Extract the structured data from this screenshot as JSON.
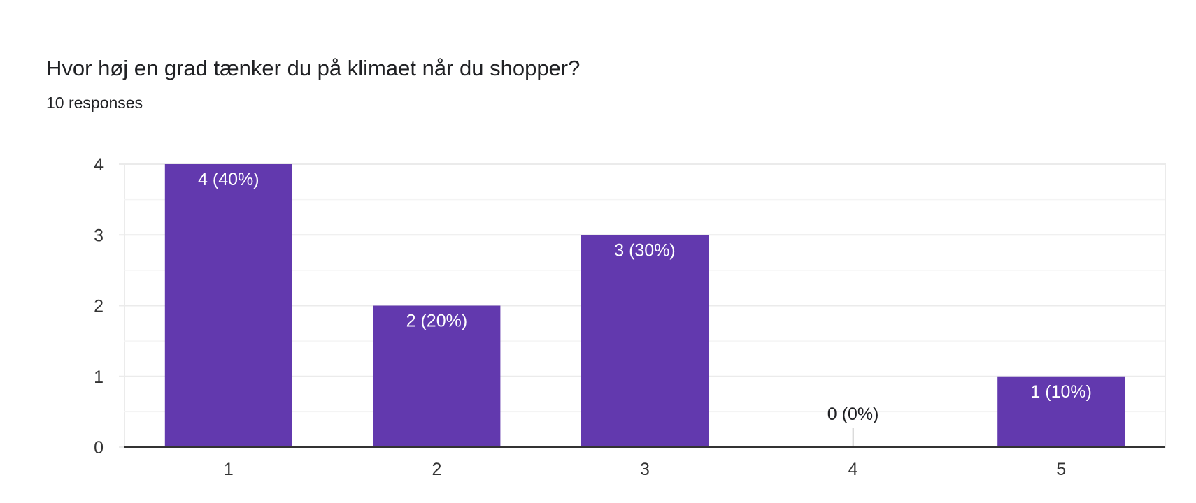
{
  "question": {
    "title": "Hvor høj en grad tænker du på klimaet når du shopper?",
    "responses": "10 responses"
  },
  "colors": {
    "bar": "#6239ae",
    "grid": "#ebebeb",
    "minor_grid": "#f4f4f4",
    "axis": "#333333",
    "label_inside": "#ffffff",
    "label_outside": "#202124",
    "tick_text": "#333333"
  },
  "chart_data": {
    "type": "bar",
    "categories": [
      "1",
      "2",
      "3",
      "4",
      "5"
    ],
    "values": [
      4,
      2,
      3,
      0,
      1
    ],
    "data_labels": [
      "4 (40%)",
      "2 (20%)",
      "3 (30%)",
      "0 (0%)",
      "1 (10%)"
    ],
    "y_ticks": [
      "0",
      "1",
      "2",
      "3",
      "4"
    ],
    "ylim": [
      0,
      4
    ],
    "grid": true,
    "legend": "none",
    "title": "",
    "xlabel": "",
    "ylabel": ""
  }
}
